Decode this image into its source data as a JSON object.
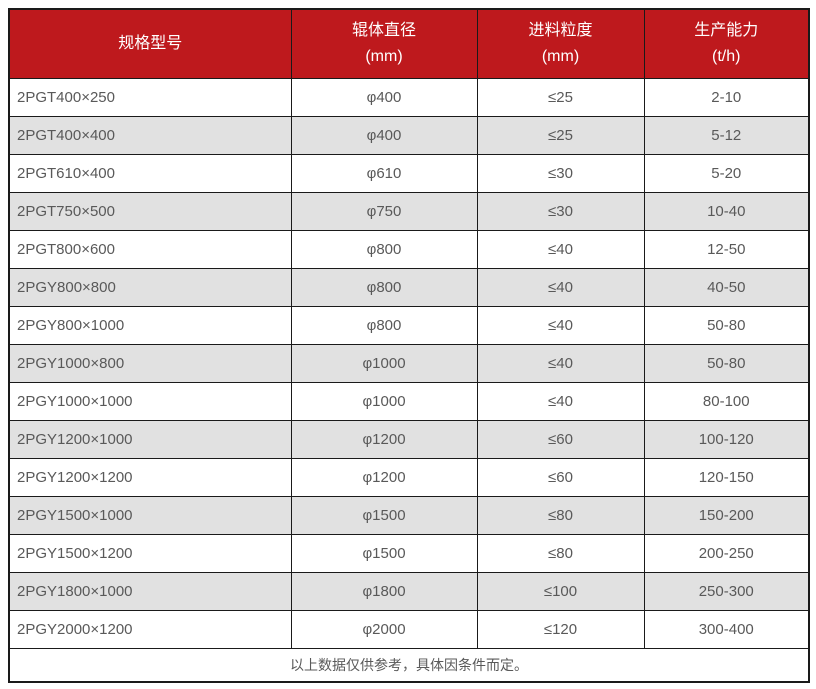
{
  "chart_data": {
    "type": "table",
    "title": "",
    "columns": [
      {
        "title": "规格型号",
        "unit": ""
      },
      {
        "title": "辊体直径",
        "unit": "(mm)"
      },
      {
        "title": "进料粒度",
        "unit": "(mm)"
      },
      {
        "title": "生产能力",
        "unit": "(t/h)"
      }
    ],
    "rows": [
      [
        "2PGT400×250",
        "φ400",
        "≤25",
        "2-10"
      ],
      [
        "2PGT400×400",
        "φ400",
        "≤25",
        "5-12"
      ],
      [
        "2PGT610×400",
        "φ610",
        "≤30",
        "5-20"
      ],
      [
        "2PGT750×500",
        "φ750",
        "≤30",
        "10-40"
      ],
      [
        "2PGT800×600",
        "φ800",
        "≤40",
        "12-50"
      ],
      [
        "2PGY800×800",
        "φ800",
        "≤40",
        "40-50"
      ],
      [
        "2PGY800×1000",
        "φ800",
        "≤40",
        "50-80"
      ],
      [
        "2PGY1000×800",
        "φ1000",
        "≤40",
        "50-80"
      ],
      [
        "2PGY1000×1000",
        "φ1000",
        "≤40",
        "80-100"
      ],
      [
        "2PGY1200×1000",
        "φ1200",
        "≤60",
        "100-120"
      ],
      [
        "2PGY1200×1200",
        "φ1200",
        "≤60",
        "120-150"
      ],
      [
        "2PGY1500×1000",
        "φ1500",
        "≤80",
        "150-200"
      ],
      [
        "2PGY1500×1200",
        "φ1500",
        "≤80",
        "200-250"
      ],
      [
        "2PGY1800×1000",
        "φ1800",
        "≤100",
        "250-300"
      ],
      [
        "2PGY2000×1200",
        "φ2000",
        "≤120",
        "300-400"
      ]
    ],
    "footer_note": "以上数据仅供参考，具体因条件而定。"
  },
  "colors": {
    "header_bg": "#be191d",
    "header_text": "#ffffff",
    "row_alt_bg": "#e1e1e1",
    "border": "#1a1a1a",
    "body_text": "#595959"
  }
}
